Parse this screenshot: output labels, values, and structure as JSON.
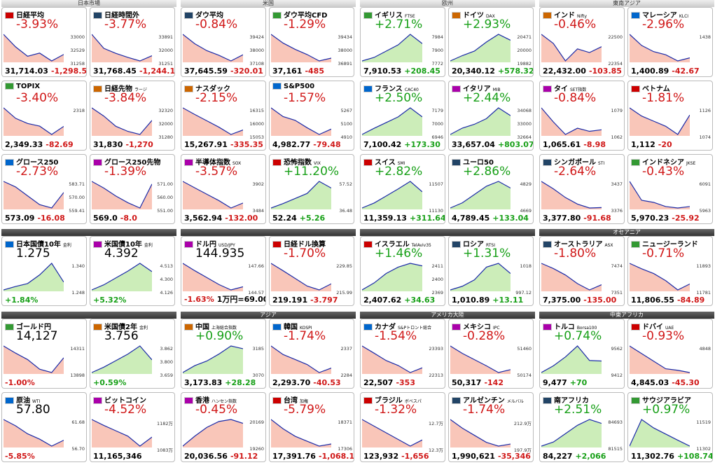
{
  "sections": [
    {
      "title": "日本市場",
      "tiles": [
        {
          "name": "日経平均",
          "big": "-3.93%",
          "bottom": [
            "31,714.03",
            "-1,298.55"
          ],
          "axis": [
            "33000",
            "32529",
            "31258"
          ],
          "spark": [
            33000,
            32200,
            31600,
            31800,
            31300,
            31714
          ]
        },
        {
          "name": "日経時間外",
          "big": "-3.77%",
          "bottom": [
            "31,768.45",
            "-1,244.13"
          ],
          "axis": [
            "33891",
            "32000",
            "31251"
          ],
          "spark": [
            33891,
            32500,
            32000,
            31600,
            31251,
            31768
          ]
        },
        {
          "name": "TOPIX",
          "big": "-3.40%",
          "bottom": [
            "2,349.33",
            "-82.69"
          ],
          "axis": [
            "2318"
          ],
          "spark": [
            2420,
            2380,
            2360,
            2350,
            2318,
            2349
          ]
        },
        {
          "name": "日経先物",
          "sub": "ラージ",
          "big": "-3.84%",
          "bottom": [
            "31,830",
            "-1,270"
          ],
          "axis": [
            "32320",
            "32000",
            "31280"
          ],
          "spark": [
            32320,
            32000,
            31600,
            31400,
            31280,
            31830
          ]
        },
        {
          "name": "グロース250",
          "big": "-2.73%",
          "bottom": [
            "573.09",
            "-16.08"
          ],
          "axis": [
            "583.71",
            "570.00",
            "559.41"
          ],
          "spark": [
            583,
            578,
            570,
            562,
            559,
            573
          ]
        },
        {
          "name": "グロース250先物",
          "big": "-1.39%",
          "bottom": [
            "569.0",
            "-8.0"
          ],
          "axis": [
            "571.00",
            "560.00",
            "551.00"
          ],
          "spark": [
            571,
            566,
            560,
            555,
            551,
            569
          ]
        }
      ]
    },
    {
      "title": "米国",
      "tiles": [
        {
          "name": "ダウ平均",
          "big": "-0.84%",
          "bottom": [
            "37,645.59",
            "-320.01"
          ],
          "axis": [
            "39424",
            "38000",
            "37108"
          ],
          "spark": [
            39424,
            38600,
            38000,
            37600,
            37108,
            37645
          ]
        },
        {
          "name": "ダウ平均CFD",
          "big": "-1.29%",
          "bottom": [
            "37,161",
            "-485"
          ],
          "axis": [
            "39434",
            "38000",
            "36891"
          ],
          "spark": [
            39434,
            38600,
            38000,
            37500,
            36891,
            37161
          ]
        },
        {
          "name": "ナスダック",
          "big": "-2.15%",
          "bottom": [
            "15,267.91",
            "-335.35"
          ],
          "axis": [
            "16315",
            "16000",
            "15053"
          ],
          "spark": [
            16315,
            16000,
            15700,
            15400,
            15053,
            15267
          ]
        },
        {
          "name": "S&P500",
          "big": "-1.57%",
          "bottom": [
            "4,982.77",
            "-79.48"
          ],
          "axis": [
            "5267",
            "5100",
            "4910"
          ],
          "spark": [
            5267,
            5150,
            5100,
            5000,
            4910,
            4982
          ]
        },
        {
          "name": "半導体指数",
          "sub": "SOX",
          "big": "-3.57%",
          "bottom": [
            "3,562.94",
            "-132.00"
          ],
          "axis": [
            "3902",
            "3484"
          ],
          "spark": [
            3902,
            3800,
            3700,
            3600,
            3484,
            3562
          ]
        },
        {
          "name": "恐怖指数",
          "sub": "VIX",
          "big": "+11.20%",
          "bottom": [
            "52.24",
            "+5.26"
          ],
          "axis": [
            "57.52",
            "36.48"
          ],
          "spark": [
            36.48,
            40,
            44,
            48,
            57.52,
            52.24
          ]
        }
      ]
    },
    {
      "title": "欧州",
      "tiles": [
        {
          "name": "イギリス",
          "sub": "FTSE",
          "big": "+2.71%",
          "bottom": [
            "7,910.53",
            "+208.45"
          ],
          "axis": [
            "7984",
            "7900",
            "7772"
          ],
          "spark": [
            7772,
            7800,
            7850,
            7900,
            7984,
            7910
          ]
        },
        {
          "name": "ドイツ",
          "sub": "DAX",
          "big": "+2.93%",
          "bottom": [
            "20,340.12",
            "+578.32"
          ],
          "axis": [
            "20471",
            "20000",
            "19882"
          ],
          "spark": [
            19882,
            20000,
            20100,
            20300,
            20471,
            20340
          ]
        },
        {
          "name": "フランス",
          "sub": "CAC40",
          "big": "+2.50%",
          "bottom": [
            "7,100.42",
            "+173.30"
          ],
          "axis": [
            "7179",
            "7000",
            "6946"
          ],
          "spark": [
            6946,
            7000,
            7050,
            7100,
            7179,
            7100
          ]
        },
        {
          "name": "イタリア",
          "sub": "MIB",
          "big": "+2.44%",
          "bottom": [
            "33,657.04",
            "+803.07"
          ],
          "axis": [
            "34068",
            "33000",
            "32664"
          ],
          "spark": [
            32664,
            33000,
            33200,
            33500,
            34068,
            33657
          ]
        },
        {
          "name": "スイス",
          "sub": "SMI",
          "big": "+2.82%",
          "bottom": [
            "11,359.13",
            "+311.64"
          ],
          "axis": [
            "11507",
            "11130"
          ],
          "spark": [
            11130,
            11200,
            11300,
            11400,
            11507,
            11359
          ]
        },
        {
          "name": "ユーロ50",
          "big": "+2.86%",
          "bottom": [
            "4,789.45",
            "+133.04"
          ],
          "axis": [
            "4829",
            "4669"
          ],
          "spark": [
            4669,
            4700,
            4750,
            4800,
            4829,
            4789
          ]
        }
      ]
    },
    {
      "title": "東南アジア",
      "tiles": [
        {
          "name": "インド",
          "sub": "Nifty",
          "big": "-0.46%",
          "bottom": [
            "22,432.00",
            "-103.85"
          ],
          "axis": [
            "22500",
            "22354"
          ],
          "spark": [
            22500,
            22450,
            22354,
            22420,
            22400,
            22432
          ]
        },
        {
          "name": "マレーシア",
          "sub": "KLCI",
          "big": "-2.96%",
          "bottom": [
            "1,400.89",
            "-42.67"
          ],
          "axis": [
            "1438"
          ],
          "spark": [
            1438,
            1420,
            1410,
            1405,
            1395,
            1400
          ]
        },
        {
          "name": "タイ",
          "sub": "SET指数",
          "big": "-0.84%",
          "bottom": [
            "1,065.61",
            "-8.98"
          ],
          "axis": [
            "1079",
            "1062"
          ],
          "spark": [
            1079,
            1070,
            1062,
            1066,
            1064,
            1065
          ]
        },
        {
          "name": "ベトナム",
          "big": "-1.81%",
          "bottom": [
            "1,112",
            "-20"
          ],
          "axis": [
            "1126",
            "1074"
          ],
          "spark": [
            1126,
            1110,
            1100,
            1090,
            1074,
            1112
          ]
        },
        {
          "name": "シンガポール",
          "sub": "STI",
          "big": "-2.64%",
          "bottom": [
            "3,377.80",
            "-91.68"
          ],
          "axis": [
            "3437",
            "3376"
          ],
          "spark": [
            3437,
            3420,
            3400,
            3385,
            3376,
            3377
          ]
        },
        {
          "name": "インドネシア",
          "sub": "JKSE",
          "big": "-0.43%",
          "bottom": [
            "5,970.23",
            "-25.92"
          ],
          "axis": [
            "6091",
            "5963"
          ],
          "spark": [
            6091,
            6000,
            5990,
            5970,
            5963,
            5970
          ]
        }
      ]
    },
    {
      "tiles": [
        {
          "name": "日本国債10年",
          "sub": "金利",
          "big": "1.275",
          "bottom": [
            "+1.84%"
          ],
          "axis": [
            "1.340",
            "1.248"
          ],
          "spark": [
            1.248,
            1.26,
            1.27,
            1.3,
            1.34,
            1.275
          ]
        },
        {
          "name": "米国債10年",
          "sub": "金利",
          "big": "4.392",
          "bottom": [
            "+5.32%"
          ],
          "axis": [
            "4.513",
            "4.300",
            "4.126"
          ],
          "spark": [
            4.126,
            4.2,
            4.3,
            4.4,
            4.513,
            4.392
          ]
        }
      ]
    },
    {
      "tiles": [
        {
          "name": "ドル円",
          "sub": "USD/JPY",
          "big": "144.935",
          "bottom": [
            "-1.63%",
            "1万円=69.00"
          ],
          "axis": [
            "147.66",
            "144.57"
          ],
          "spark": [
            147.66,
            146.8,
            146,
            145.2,
            144.57,
            144.935
          ]
        },
        {
          "name": "日経ドル換算",
          "big": "-1.70%",
          "bottom": [
            "219.191",
            "-3.797"
          ],
          "axis": [
            "229.85",
            "215.99"
          ],
          "spark": [
            229.85,
            226,
            222,
            218,
            215.99,
            219.191
          ]
        }
      ]
    },
    {
      "tiles": [
        {
          "name": "イスラエル",
          "sub": "TelAviv35",
          "big": "+1.46%",
          "bottom": [
            "2,407.62",
            "+34.63"
          ],
          "axis": [
            "2411",
            "2400",
            "2369"
          ],
          "spark": [
            2369,
            2380,
            2395,
            2405,
            2411,
            2407
          ]
        },
        {
          "name": "ロシア",
          "sub": "RTSI",
          "big": "+1.31%",
          "bottom": [
            "1,010.89",
            "+13.11"
          ],
          "axis": [
            "1018",
            "997.12"
          ],
          "spark": [
            997.12,
            1000,
            1005,
            1015,
            1018,
            1010
          ]
        }
      ]
    },
    {
      "title": "オセアニア",
      "tiles": [
        {
          "name": "オーストラリア",
          "sub": "ASX",
          "big": "-1.80%",
          "bottom": [
            "7,375.00",
            "-135.00"
          ],
          "axis": [
            "7474",
            "7351"
          ],
          "spark": [
            7474,
            7450,
            7420,
            7380,
            7351,
            7375
          ]
        },
        {
          "name": "ニュージーランド",
          "big": "-0.71%",
          "bottom": [
            "11,806.55",
            "-84.89"
          ],
          "axis": [
            "11893",
            "11781"
          ],
          "spark": [
            11893,
            11870,
            11850,
            11820,
            11781,
            11806
          ]
        }
      ]
    },
    {
      "tiles": [
        {
          "name": "ゴールド円",
          "big": "14,127",
          "bottom": [
            "-1.00%"
          ],
          "axis": [
            "14311",
            "13898"
          ],
          "spark": [
            14311,
            14200,
            14100,
            13950,
            13898,
            14127
          ]
        },
        {
          "name": "米国債2年",
          "sub": "金利",
          "big": "3.756",
          "bottom": [
            "+0.59%"
          ],
          "axis": [
            "3.862",
            "3.800",
            "3.659"
          ],
          "spark": [
            3.659,
            3.7,
            3.75,
            3.8,
            3.862,
            3.756
          ]
        },
        {
          "name": "原油",
          "sub": "WTI",
          "big": "57.80",
          "bottom": [
            "-5.85%"
          ],
          "axis": [
            "61.68",
            "56.70"
          ],
          "spark": [
            61.68,
            60.5,
            59,
            58,
            56.7,
            57.8
          ]
        },
        {
          "name": "ビットコイン",
          "big": "-4.52%",
          "bottom": [
            "11,165,346"
          ],
          "axis": [
            "1182万",
            "1083万"
          ],
          "spark": [
            11820000,
            11600000,
            11400000,
            11200000,
            10830000,
            11165346
          ]
        }
      ]
    },
    {
      "title": "アジア",
      "tiles": [
        {
          "name": "中国",
          "sub": "上海総合指数",
          "big": "+0.90%",
          "bottom": [
            "3,173.83",
            "+28.28"
          ],
          "axis": [
            "3185",
            "3070"
          ],
          "spark": [
            3070,
            3100,
            3120,
            3150,
            3185,
            3173
          ]
        },
        {
          "name": "韓国",
          "sub": "KOSPI",
          "big": "-1.74%",
          "bottom": [
            "2,293.70",
            "-40.53"
          ],
          "axis": [
            "2337",
            "2284"
          ],
          "spark": [
            2337,
            2320,
            2310,
            2300,
            2284,
            2293
          ]
        },
        {
          "name": "香港",
          "sub": "ハンセン指数",
          "big": "-0.45%",
          "bottom": [
            "20,036.56",
            "-91.12"
          ],
          "axis": [
            "20169",
            "19260"
          ],
          "spark": [
            19260,
            19600,
            19900,
            20100,
            20169,
            20036
          ]
        },
        {
          "name": "台湾",
          "sub": "加権",
          "big": "-5.79%",
          "bottom": [
            "17,391.76",
            "-1,068.19"
          ],
          "axis": [
            "18371",
            "17306"
          ],
          "spark": [
            18371,
            18000,
            17700,
            17500,
            17306,
            17391
          ]
        }
      ]
    },
    {
      "title": "アメリカ大陸",
      "tiles": [
        {
          "name": "カナダ",
          "sub": "S&Pトロント総合",
          "big": "-1.54%",
          "bottom": [
            "22,507",
            "-353"
          ],
          "axis": [
            "23393",
            "22313"
          ],
          "spark": [
            23393,
            23100,
            22800,
            22600,
            22313,
            22507
          ]
        },
        {
          "name": "メキシコ",
          "sub": "IPC",
          "big": "-0.28%",
          "bottom": [
            "50,317",
            "-142"
          ],
          "axis": [
            "51460",
            "50174"
          ],
          "spark": [
            51460,
            51100,
            50800,
            50500,
            50174,
            50317
          ]
        },
        {
          "name": "ブラジル",
          "sub": "ボベスパ",
          "big": "-1.32%",
          "bottom": [
            "123,932",
            "-1,656"
          ],
          "axis": [
            "12.7万",
            "12.3万"
          ],
          "spark": [
            127000,
            126000,
            125000,
            124000,
            123000,
            123932
          ]
        },
        {
          "name": "アルゼンチン",
          "sub": "メルバル",
          "big": "-1.74%",
          "bottom": [
            "1,990,621",
            "-35,346"
          ],
          "axis": [
            "212.9万",
            "197.9万"
          ],
          "spark": [
            2129000,
            2080000,
            2040000,
            2000000,
            1979000,
            1990621
          ]
        }
      ]
    },
    {
      "title": "中東アフリカ",
      "tiles": [
        {
          "name": "トルコ",
          "sub": "Borsa100",
          "big": "+0.74%",
          "bottom": [
            "9,477",
            "+70"
          ],
          "axis": [
            "9562",
            "9412"
          ],
          "spark": [
            9412,
            9450,
            9500,
            9562,
            9480,
            9477
          ]
        },
        {
          "name": "ドバイ",
          "sub": "UAE",
          "big": "-0.93%",
          "bottom": [
            "4,845.03",
            "-45.30"
          ],
          "axis": [
            "4848"
          ],
          "spark": [
            4880,
            4870,
            4860,
            4850,
            4848,
            4845
          ]
        },
        {
          "name": "南アフリカ",
          "big": "+2.51%",
          "bottom": [
            "84,227",
            "+2,066"
          ],
          "axis": [
            "84693",
            "81515"
          ],
          "spark": [
            81515,
            82000,
            83000,
            84000,
            84693,
            84227
          ]
        },
        {
          "name": "サウジアラビア",
          "big": "+0.97%",
          "bottom": [
            "11,302.76",
            "+108.74"
          ],
          "axis": [
            "11519",
            "11302"
          ],
          "spark": [
            11302,
            11519,
            11450,
            11400,
            11350,
            11302
          ]
        }
      ]
    }
  ]
}
